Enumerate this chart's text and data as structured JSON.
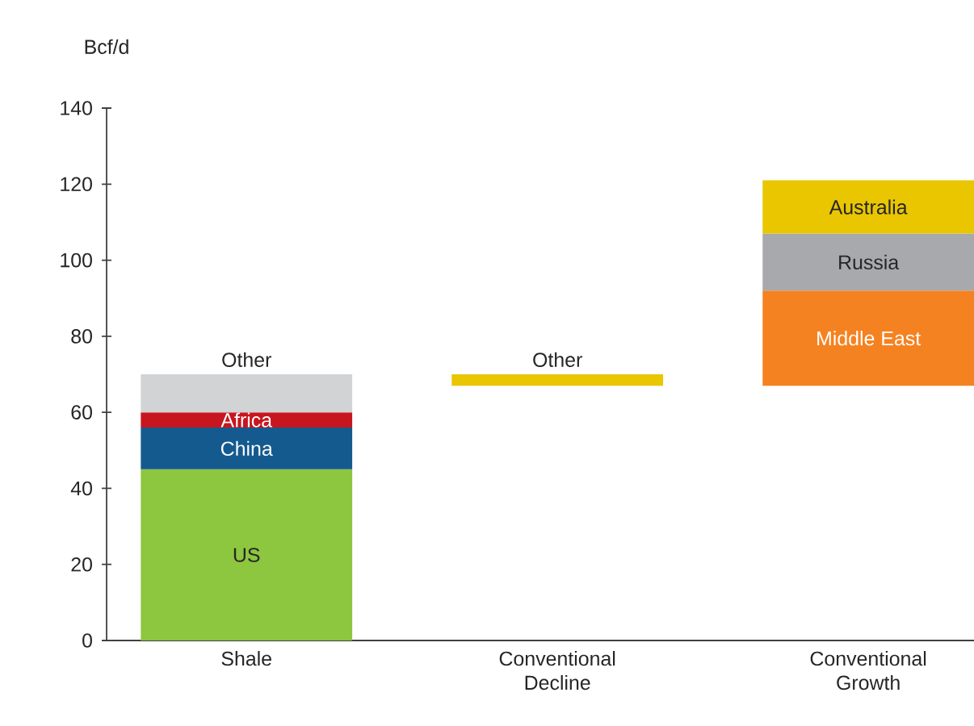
{
  "chart_data": {
    "type": "bar",
    "ylabel": "Bcf/d",
    "categories": [
      "Shale",
      "Conventional Decline",
      "Conventional Growth"
    ],
    "ylim": [
      0,
      140
    ],
    "yticks": [
      0,
      20,
      40,
      60,
      80,
      100,
      120,
      140
    ],
    "series": [
      {
        "name": "US",
        "color": "#8dc63f",
        "base": [
          0,
          null,
          null
        ],
        "values": [
          45,
          null,
          null
        ]
      },
      {
        "name": "China",
        "color": "#155a8f",
        "base": [
          45,
          null,
          null
        ],
        "values": [
          11,
          null,
          null
        ]
      },
      {
        "name": "Africa",
        "color": "#c8161e",
        "base": [
          56,
          null,
          null
        ],
        "values": [
          4,
          null,
          null
        ]
      },
      {
        "name": "Other",
        "color": "#d1d3d4",
        "base": [
          60,
          null,
          null
        ],
        "values": [
          10,
          null,
          null
        ]
      },
      {
        "name": "Other",
        "color": "#e9c600",
        "base": [
          null,
          70,
          null
        ],
        "values": [
          null,
          -3,
          null
        ]
      },
      {
        "name": "Middle East",
        "color": "#f58220",
        "base": [
          null,
          null,
          67
        ],
        "values": [
          null,
          null,
          25
        ]
      },
      {
        "name": "Russia",
        "color": "#a7a9ac",
        "base": [
          null,
          null,
          92
        ],
        "values": [
          null,
          null,
          15
        ]
      },
      {
        "name": "Australia",
        "color": "#e9c600",
        "base": [
          null,
          null,
          107
        ],
        "values": [
          null,
          null,
          14
        ]
      }
    ]
  }
}
